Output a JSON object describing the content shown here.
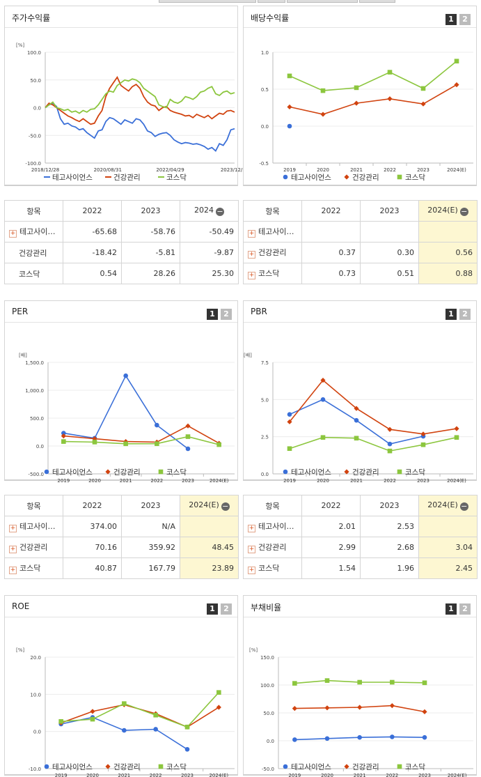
{
  "colors": {
    "s1": "#3a6fd8",
    "s2": "#d1430f",
    "s3": "#8cc63e"
  },
  "series_names": [
    "테고사이언스",
    "건강관리",
    "코스닥"
  ],
  "stock": {
    "title": "주가수익률",
    "chart_data": {
      "type": "line",
      "unit": "[%]",
      "ylim": [
        -100,
        100
      ],
      "yticks": [
        "100.0",
        "50.0",
        "0.0",
        "-50.0",
        "-100.0"
      ],
      "xtick_labels": [
        "2018/12/28",
        "2020/08/31",
        "2022/04/29",
        "2023/12/28"
      ],
      "series": [
        {
          "name": "테고사이언스",
          "values": [
            0,
            5,
            8,
            2,
            -20,
            -30,
            -28,
            -33,
            -35,
            -40,
            -38,
            -45,
            -50,
            -55,
            -42,
            -40,
            -25,
            -18,
            -20,
            -25,
            -30,
            -22,
            -25,
            -28,
            -20,
            -22,
            -30,
            -42,
            -45,
            -52,
            -48,
            -46,
            -45,
            -50,
            -58,
            -62,
            -65,
            -63,
            -64,
            -66,
            -65,
            -67,
            -70,
            -75,
            -72,
            -78,
            -65,
            -68,
            -58,
            -40,
            -38
          ]
        },
        {
          "name": "건강관리",
          "values": [
            0,
            8,
            5,
            0,
            -5,
            -10,
            -15,
            -18,
            -22,
            -25,
            -20,
            -25,
            -30,
            -28,
            -15,
            -5,
            20,
            35,
            45,
            55,
            40,
            35,
            30,
            38,
            42,
            35,
            20,
            10,
            5,
            3,
            -5,
            0,
            2,
            -5,
            -8,
            -10,
            -12,
            -15,
            -14,
            -18,
            -12,
            -15,
            -18,
            -14,
            -20,
            -15,
            -10,
            -12,
            -6,
            -5,
            -8
          ]
        },
        {
          "name": "코스닥",
          "values": [
            0,
            5,
            10,
            0,
            -2,
            -5,
            -3,
            -8,
            -6,
            -10,
            -5,
            -8,
            -3,
            -2,
            5,
            15,
            25,
            30,
            28,
            40,
            45,
            50,
            48,
            52,
            50,
            45,
            35,
            30,
            25,
            20,
            5,
            2,
            0,
            15,
            10,
            8,
            12,
            20,
            18,
            15,
            20,
            28,
            30,
            35,
            38,
            25,
            22,
            28,
            30,
            25,
            27
          ]
        }
      ]
    }
  },
  "stock_table": {
    "header": [
      "항목",
      "2022",
      "2023",
      "2024"
    ],
    "rows": [
      {
        "name": "테고사이…",
        "plus": true,
        "values": [
          "-65.68",
          "-58.76",
          "-50.49"
        ]
      },
      {
        "name": "건강관리",
        "plus": false,
        "values": [
          "-18.42",
          "-5.81",
          "-9.87"
        ]
      },
      {
        "name": "코스닥",
        "plus": false,
        "values": [
          "0.54",
          "28.26",
          "25.30"
        ]
      }
    ]
  },
  "dividend": {
    "title": "배당수익률",
    "btn1": "1",
    "btn2": "2",
    "chart_data": {
      "type": "line",
      "unit": "",
      "ylim": [
        -0.5,
        1.0
      ],
      "yticks": [
        "1.0",
        "0.5",
        "0.0",
        "-0.5"
      ],
      "categories": [
        "2019",
        "2020",
        "2021",
        "2022",
        "2023",
        "2024(E)"
      ],
      "series": [
        {
          "name": "테고사이언스",
          "values": [
            0.0,
            null,
            null,
            null,
            null,
            null
          ]
        },
        {
          "name": "건강관리",
          "values": [
            0.26,
            0.16,
            0.31,
            0.37,
            0.3,
            0.56
          ]
        },
        {
          "name": "코스닥",
          "values": [
            0.68,
            0.48,
            0.52,
            0.73,
            0.51,
            0.88
          ]
        }
      ]
    }
  },
  "dividend_table": {
    "header": [
      "항목",
      "2022",
      "2023",
      "2024(E)"
    ],
    "rows": [
      {
        "name": "테고사이…",
        "plus": true,
        "values": [
          "",
          "",
          ""
        ]
      },
      {
        "name": "건강관리",
        "plus": true,
        "values": [
          "0.37",
          "0.30",
          "0.56"
        ]
      },
      {
        "name": "코스닥",
        "plus": true,
        "values": [
          "0.73",
          "0.51",
          "0.88"
        ]
      }
    ]
  },
  "per": {
    "title": "PER",
    "btn1": "1",
    "btn2": "2",
    "chart_data": {
      "type": "line",
      "unit": "[배]",
      "ylim": [
        -500,
        1500
      ],
      "yticks": [
        "1,500.0",
        "1,000.0",
        "500.0",
        "0.0",
        "-500.0"
      ],
      "categories": [
        "2019",
        "2020",
        "2021",
        "2022",
        "2023",
        "2024(E)"
      ],
      "series": [
        {
          "name": "테고사이언스",
          "values": [
            230,
            140,
            1260,
            374,
            -50,
            null
          ]
        },
        {
          "name": "건강관리",
          "values": [
            180,
            130,
            80,
            70.16,
            359.92,
            48.45
          ]
        },
        {
          "name": "코스닥",
          "values": [
            80,
            70,
            40,
            40.87,
            167.79,
            23.89
          ]
        }
      ]
    }
  },
  "per_table": {
    "header": [
      "항목",
      "2022",
      "2023",
      "2024(E)"
    ],
    "rows": [
      {
        "name": "테고사이…",
        "plus": true,
        "values": [
          "374.00",
          "N/A",
          ""
        ]
      },
      {
        "name": "건강관리",
        "plus": true,
        "values": [
          "70.16",
          "359.92",
          "48.45"
        ]
      },
      {
        "name": "코스닥",
        "plus": true,
        "values": [
          "40.87",
          "167.79",
          "23.89"
        ]
      }
    ]
  },
  "pbr": {
    "title": "PBR",
    "btn1": "1",
    "btn2": "2",
    "chart_data": {
      "type": "line",
      "unit": "[배]",
      "ylim": [
        0,
        7.5
      ],
      "yticks": [
        "7.5",
        "5.0",
        "2.5",
        "0.0"
      ],
      "categories": [
        "2019",
        "2020",
        "2021",
        "2022",
        "2023",
        "2024(E)"
      ],
      "series": [
        {
          "name": "테고사이언스",
          "values": [
            4.0,
            5.0,
            3.6,
            2.01,
            2.53,
            null
          ]
        },
        {
          "name": "건강관리",
          "values": [
            3.5,
            6.3,
            4.4,
            2.99,
            2.68,
            3.04
          ]
        },
        {
          "name": "코스닥",
          "values": [
            1.7,
            2.45,
            2.4,
            1.54,
            1.96,
            2.45
          ]
        }
      ]
    }
  },
  "pbr_table": {
    "header": [
      "항목",
      "2022",
      "2023",
      "2024(E)"
    ],
    "rows": [
      {
        "name": "테고사이…",
        "plus": true,
        "values": [
          "2.01",
          "2.53",
          ""
        ]
      },
      {
        "name": "건강관리",
        "plus": true,
        "values": [
          "2.99",
          "2.68",
          "3.04"
        ]
      },
      {
        "name": "코스닥",
        "plus": true,
        "values": [
          "1.54",
          "1.96",
          "2.45"
        ]
      }
    ]
  },
  "roe": {
    "title": "ROE",
    "btn1": "1",
    "btn2": "2",
    "chart_data": {
      "type": "line",
      "unit": "[%]",
      "ylim": [
        -10,
        20
      ],
      "yticks": [
        "20.0",
        "10.0",
        "0.0",
        "-10.0"
      ],
      "categories": [
        "2019",
        "2020",
        "2021",
        "2022",
        "2023",
        "2024(E)"
      ],
      "series": [
        {
          "name": "테고사이언스",
          "values": [
            2.0,
            3.8,
            0.3,
            0.6,
            -4.8,
            null
          ]
        },
        {
          "name": "건강관리",
          "values": [
            2.3,
            5.4,
            7.2,
            4.8,
            1.2,
            6.5
          ]
        },
        {
          "name": "코스닥",
          "values": [
            2.7,
            3.3,
            7.5,
            4.4,
            1.2,
            10.5
          ]
        }
      ]
    }
  },
  "debt": {
    "title": "부채비율",
    "btn1": "1",
    "btn2": "2",
    "chart_data": {
      "type": "line",
      "unit": "[%]",
      "ylim": [
        -50,
        150
      ],
      "yticks": [
        "150.0",
        "100.0",
        "50.0",
        "0.0",
        "-50.0"
      ],
      "categories": [
        "2019",
        "2020",
        "2021",
        "2022",
        "2023",
        "2024(E)"
      ],
      "series": [
        {
          "name": "테고사이언스",
          "values": [
            2,
            4,
            6,
            7,
            6,
            null
          ]
        },
        {
          "name": "건강관리",
          "values": [
            58,
            59,
            60,
            63,
            52,
            null
          ]
        },
        {
          "name": "코스닥",
          "values": [
            103,
            108,
            105,
            105,
            104,
            null
          ]
        }
      ]
    }
  }
}
